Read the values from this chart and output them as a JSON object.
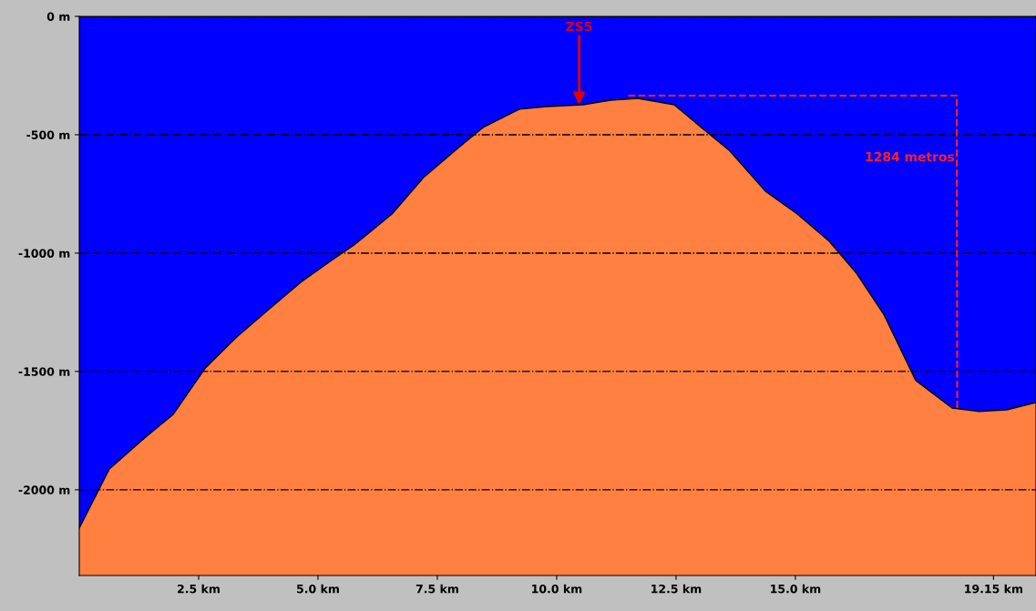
{
  "chart_data": {
    "type": "area",
    "x": [
      0,
      0.63,
      1.39,
      1.97,
      2.63,
      3.3,
      3.97,
      4.64,
      5.31,
      5.78,
      6.55,
      7.21,
      7.88,
      8.46,
      9.22,
      9.79,
      10.55,
      11.13,
      11.7,
      12.46,
      13.03,
      13.61,
      14.37,
      15.04,
      15.71,
      16.28,
      16.85,
      17.52,
      18.28,
      18.85,
      19.43,
      20.04
    ],
    "series": [
      {
        "color": "#0000ff",
        "values": [
          -2162,
          -1912,
          -1777,
          -1681,
          -1488,
          -1354,
          -1238,
          -1123,
          -1027,
          -962,
          -835,
          -681,
          -565,
          -469,
          -392,
          -381,
          -373,
          -354,
          -346,
          -373,
          -469,
          -565,
          -738,
          -835,
          -950,
          -1085,
          -1258,
          -1538,
          -1654,
          -1669,
          -1662,
          -1631
        ]
      },
      {
        "type": "line",
        "line_style": "dashed",
        "color": "#ff2020",
        "x": [
          11.5,
          18.38,
          18.39
        ],
        "values": [
          -335,
          -335,
          -1660
        ]
      }
    ],
    "xlim": [
      0,
      20.04
    ],
    "ylim": [
      -2362,
      0
    ],
    "xticks": [
      {
        "value": 2.5,
        "label": "2.5 km"
      },
      {
        "value": 5.0,
        "label": "5.0 km"
      },
      {
        "value": 7.5,
        "label": "7.5 km"
      },
      {
        "value": 10.0,
        "label": "10.0 km"
      },
      {
        "value": 12.5,
        "label": "12.5 km"
      },
      {
        "value": 15.0,
        "label": "15.0 km"
      },
      {
        "value": 19.15,
        "label": "19.15 km"
      }
    ],
    "yticks": [
      {
        "value": 0,
        "label": "0 m"
      },
      {
        "value": -500,
        "label": "-500 m"
      },
      {
        "value": -1000,
        "label": "-1000 m"
      },
      {
        "value": -1500,
        "label": "-1500 m"
      },
      {
        "value": -2000,
        "label": "-2000 m"
      }
    ],
    "grid": "y",
    "annotations": [
      {
        "text": "ZS5",
        "x": 10.47,
        "y": -373
      },
      "1284 metros"
    ]
  }
}
